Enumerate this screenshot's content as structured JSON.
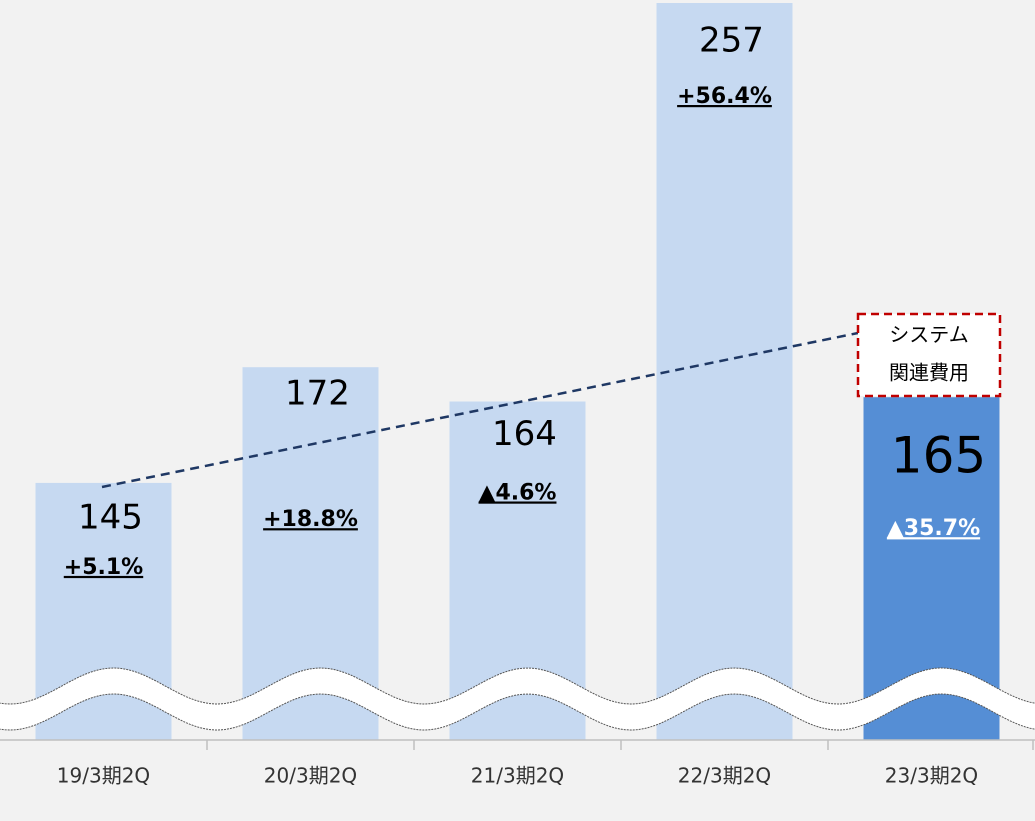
{
  "chart_data": {
    "type": "bar",
    "categories": [
      "19/3期2Q",
      "20/3期2Q",
      "21/3期2Q",
      "22/3期2Q",
      "23/3期2Q"
    ],
    "values": [
      145,
      172,
      164,
      257,
      165
    ],
    "changes": [
      "+5.1%",
      "+18.8%",
      "▲4.6%",
      "+56.4%",
      "▲35.7%"
    ],
    "colors": [
      "#c6d9f1",
      "#c6d9f1",
      "#c6d9f1",
      "#c6d9f1",
      "#558ed5"
    ],
    "label_colors": [
      "#000000",
      "#000000",
      "#000000",
      "#000000",
      "#0000c0"
    ],
    "change_colors": [
      "#000000",
      "#000000",
      "#000000",
      "#000000",
      "#ffffff"
    ],
    "ylim": [
      85,
      257
    ],
    "axis_break": true,
    "annotation": [
      "システム",
      "関連費用"
    ]
  }
}
